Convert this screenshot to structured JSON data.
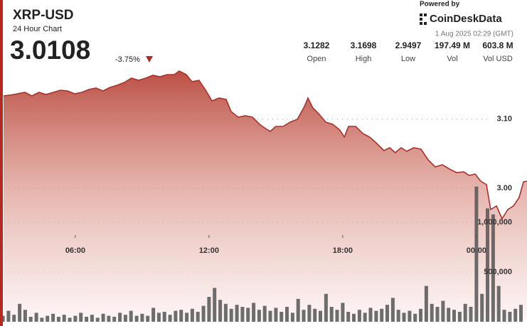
{
  "header": {
    "title": "XRP-USD",
    "subtitle": "24 Hour Chart",
    "price": "3.0108",
    "change": "-3.75%",
    "powered_by": "Powered by",
    "brand": "CoinDeskData",
    "timestamp": "1 Aug 2025 02:29 (GMT)",
    "stats": [
      {
        "value": "3.1282",
        "label": "Open"
      },
      {
        "value": "3.1698",
        "label": "High"
      },
      {
        "value": "2.9497",
        "label": "Low"
      },
      {
        "value": "197.49 M",
        "label": "Vol"
      },
      {
        "value": "603.8 M",
        "label": "Vol USD"
      }
    ]
  },
  "chart_data": [
    {
      "type": "area",
      "color": "#a8322a",
      "grid": true,
      "xlim": [
        2.78,
        26.27
      ],
      "xticks": [
        {
          "value": 6,
          "label": "06:00"
        },
        {
          "value": 12,
          "label": "12:00"
        },
        {
          "value": 18,
          "label": "18:00"
        },
        {
          "value": 24,
          "label": "00:00"
        }
      ],
      "ylim": [
        2.81,
        3.18
      ],
      "yticks": [
        {
          "value": 3,
          "label": "3.00"
        },
        {
          "value": 3.1,
          "label": "3.10"
        }
      ],
      "x": [
        2.78,
        3.25,
        3.73,
        4.05,
        4.37,
        4.69,
        5.01,
        5.33,
        5.65,
        5.97,
        6.29,
        6.61,
        6.93,
        7.24,
        7.56,
        7.88,
        8.2,
        8.52,
        8.84,
        9.16,
        9.48,
        9.8,
        10.12,
        10.44,
        10.66,
        10.98,
        11.23,
        11.55,
        11.87,
        12.13,
        12.45,
        12.77,
        12.99,
        13.31,
        13.63,
        13.95,
        14.27,
        14.49,
        14.75,
        15.0,
        15.32,
        15.64,
        15.96,
        16.28,
        16.44,
        16.66,
        16.92,
        17.24,
        17.55,
        17.87,
        18.07,
        18.26,
        18.58,
        18.9,
        19.21,
        19.53,
        19.85,
        20.11,
        20.36,
        20.62,
        20.87,
        21.19,
        21.51,
        21.83,
        22.15,
        22.47,
        22.79,
        23.11,
        23.43,
        23.68,
        23.94,
        24.19,
        24.45,
        24.64,
        24.9,
        25.15,
        25.41,
        25.66,
        25.92,
        26.11,
        26.27
      ],
      "values": [
        3.1338,
        3.1358,
        3.1389,
        3.1338,
        3.1389,
        3.1358,
        3.1389,
        3.142,
        3.1409,
        3.1368,
        3.1389,
        3.143,
        3.1451,
        3.1409,
        3.1461,
        3.1492,
        3.1533,
        3.1594,
        3.1564,
        3.1594,
        3.1636,
        3.1615,
        3.1646,
        3.1646,
        3.1697,
        3.1646,
        3.1543,
        3.1564,
        3.1409,
        3.1266,
        3.1307,
        3.1286,
        3.1111,
        3.1029,
        3.105,
        3.1029,
        3.0926,
        3.0875,
        3.0824,
        3.0896,
        3.0896,
        3.0957,
        3.0998,
        3.1183,
        3.1307,
        3.1163,
        3.1081,
        3.0957,
        3.0926,
        3.0844,
        3.0741,
        3.0896,
        3.0896,
        3.0793,
        3.0741,
        3.0649,
        3.0546,
        3.0587,
        3.0515,
        3.0587,
        3.0536,
        3.0587,
        3.0567,
        3.0412,
        3.031,
        3.0341,
        3.0279,
        3.0227,
        3.0238,
        3.0186,
        3.0207,
        3.0104,
        3.0053,
        2.9693,
        2.9744,
        2.9559,
        2.9693,
        2.9744,
        2.9868,
        3.0094,
        3.0104
      ]
    },
    {
      "type": "bar",
      "color": "#555555",
      "grid": true,
      "xlim": [
        2.78,
        26.27
      ],
      "ylim": [
        0,
        1500000
      ],
      "yticks": [
        {
          "value": 500000,
          "label": "500,000"
        },
        {
          "value": 1000000,
          "label": "1,000,000"
        }
      ],
      "x": [
        2.75,
        3,
        3.25,
        3.5,
        3.75,
        4,
        4.25,
        4.5,
        4.75,
        5,
        5.25,
        5.5,
        5.75,
        6,
        6.25,
        6.5,
        6.75,
        7,
        7.25,
        7.5,
        7.75,
        8,
        8.25,
        8.5,
        8.75,
        9,
        9.25,
        9.5,
        9.75,
        10,
        10.25,
        10.5,
        10.75,
        11,
        11.25,
        11.5,
        11.75,
        12,
        12.25,
        12.5,
        12.75,
        13,
        13.25,
        13.5,
        13.75,
        14,
        14.25,
        14.5,
        14.75,
        15,
        15.25,
        15.5,
        15.75,
        16,
        16.25,
        16.5,
        16.75,
        17,
        17.25,
        17.5,
        17.75,
        18,
        18.25,
        18.5,
        18.75,
        19,
        19.25,
        19.5,
        19.75,
        20,
        20.25,
        20.5,
        20.75,
        21,
        21.25,
        21.5,
        21.75,
        22,
        22.25,
        22.5,
        22.75,
        23,
        23.25,
        23.5,
        23.75,
        24,
        24.25,
        24.5,
        24.75,
        25,
        25.25,
        25.5,
        25.75,
        26
      ],
      "values": [
        60000,
        110000,
        70000,
        180000,
        120000,
        50000,
        90000,
        40000,
        60000,
        80000,
        50000,
        70000,
        40000,
        60000,
        90000,
        50000,
        70000,
        40000,
        80000,
        60000,
        50000,
        90000,
        70000,
        110000,
        60000,
        80000,
        60000,
        140000,
        90000,
        100000,
        70000,
        110000,
        120000,
        90000,
        130000,
        100000,
        160000,
        250000,
        340000,
        220000,
        180000,
        130000,
        170000,
        150000,
        140000,
        190000,
        120000,
        160000,
        110000,
        140000,
        100000,
        150000,
        90000,
        230000,
        120000,
        170000,
        130000,
        110000,
        280000,
        150000,
        120000,
        190000,
        100000,
        80000,
        120000,
        90000,
        140000,
        110000,
        130000,
        170000,
        240000,
        120000,
        90000,
        110000,
        80000,
        130000,
        360000,
        180000,
        150000,
        210000,
        140000,
        120000,
        100000,
        180000,
        150000,
        1360000,
        280000,
        1140000,
        1080000,
        360000,
        120000,
        100000,
        130000,
        170000
      ]
    }
  ]
}
